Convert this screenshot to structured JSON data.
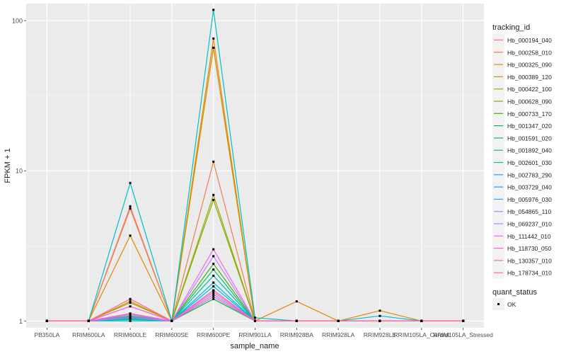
{
  "chart_data": {
    "type": "line",
    "title": "",
    "xlabel": "sample_name",
    "ylabel": "FPKM + 1",
    "y_scale": "log10",
    "ylim": [
      0.9,
      130
    ],
    "y_ticks": [
      1,
      10,
      100
    ],
    "y_tick_labels": [
      "1",
      "10",
      "100"
    ],
    "grid": true,
    "categories": [
      "PB350LA",
      "RRIM600LA",
      "RRIM600LE",
      "RRIM600SE",
      "RRIM600PE",
      "RRIM901LA",
      "RRIM928BA",
      "RRIM928LA",
      "RRIM928LE",
      "RRIM105LA_Control",
      "RRIM105LA_Stressed"
    ],
    "legend": {
      "position": "right",
      "title": "tracking_id",
      "entries": [
        "Hb_000194_040",
        "Hb_000258_010",
        "Hb_000325_090",
        "Hb_000389_120",
        "Hb_000422_100",
        "Hb_000628_090",
        "Hb_000733_170",
        "Hb_001347_020",
        "Hb_001591_020",
        "Hb_001892_040",
        "Hb_002601_030",
        "Hb_002783_290",
        "Hb_003729_040",
        "Hb_005976_030",
        "Hb_054865_110",
        "Hb_069237_010",
        "Hb_111442_010",
        "Hb_118730_050",
        "Hb_130357_010",
        "Hb_178734_010"
      ]
    },
    "shape_legend": {
      "title": "quant_status",
      "entries": [
        "OK"
      ]
    },
    "series": [
      {
        "name": "Hb_000194_040",
        "color": "#F8766D",
        "values": [
          1,
          1,
          5.8,
          1,
          66,
          1,
          1,
          1,
          1,
          1,
          1
        ]
      },
      {
        "name": "Hb_000258_010",
        "color": "#F07F4C",
        "values": [
          1,
          1,
          5.6,
          1,
          11.5,
          1,
          1,
          1,
          1,
          1,
          1
        ]
      },
      {
        "name": "Hb_000325_090",
        "color": "#E08B00",
        "values": [
          1,
          1,
          3.7,
          1,
          76,
          1,
          1.35,
          1,
          1.17,
          1,
          1
        ]
      },
      {
        "name": "Hb_000389_120",
        "color": "#CD9600",
        "values": [
          1,
          1,
          1.35,
          1,
          66,
          1,
          1,
          1,
          1,
          1,
          1
        ]
      },
      {
        "name": "Hb_000422_100",
        "color": "#ABA300",
        "values": [
          1,
          1,
          1.32,
          1,
          6.9,
          1,
          1,
          1,
          1,
          1,
          1
        ]
      },
      {
        "name": "Hb_000628_090",
        "color": "#7CAE00",
        "values": [
          1,
          1,
          1.08,
          1,
          6.4,
          1,
          1,
          1,
          1,
          1,
          1
        ]
      },
      {
        "name": "Hb_000733_170",
        "color": "#39B600",
        "values": [
          1,
          1,
          1.05,
          1,
          2.4,
          1,
          1,
          1,
          1,
          1,
          1
        ]
      },
      {
        "name": "Hb_001347_020",
        "color": "#00BB4E",
        "values": [
          1,
          1,
          1.03,
          1,
          1.4,
          1,
          1,
          1,
          1,
          1,
          1
        ]
      },
      {
        "name": "Hb_001591_020",
        "color": "#00BF7D",
        "values": [
          1,
          1,
          1.04,
          1,
          2.2,
          1,
          1,
          1,
          1,
          1,
          1
        ]
      },
      {
        "name": "Hb_001892_040",
        "color": "#00C1A3",
        "values": [
          1,
          1,
          1.02,
          1,
          2.0,
          1,
          1,
          1,
          1,
          1,
          1
        ]
      },
      {
        "name": "Hb_002601_030",
        "color": "#00BFC4",
        "values": [
          1,
          1,
          8.3,
          1,
          118,
          1.05,
          1,
          1,
          1,
          1,
          1
        ]
      },
      {
        "name": "Hb_002783_290",
        "color": "#00BAE0",
        "values": [
          1,
          1,
          1.0,
          1,
          1.8,
          1,
          1,
          1,
          1.08,
          1,
          1
        ]
      },
      {
        "name": "Hb_003729_040",
        "color": "#00B0F6",
        "values": [
          1,
          1,
          1.06,
          1,
          1.7,
          1,
          1,
          1,
          1,
          1,
          1
        ]
      },
      {
        "name": "Hb_005976_030",
        "color": "#35A2FF",
        "values": [
          1,
          1,
          1.07,
          1,
          1.6,
          1,
          1,
          1,
          1,
          1,
          1
        ]
      },
      {
        "name": "Hb_054865_110",
        "color": "#9590FF",
        "values": [
          1,
          1,
          1.1,
          1,
          1.5,
          1,
          1,
          1,
          1,
          1,
          1
        ]
      },
      {
        "name": "Hb_069237_010",
        "color": "#C77CFF",
        "values": [
          1,
          1,
          1.12,
          1,
          2.7,
          1,
          1,
          1,
          1,
          1,
          1
        ]
      },
      {
        "name": "Hb_111442_010",
        "color": "#E76BF3",
        "values": [
          1,
          1,
          1.05,
          1,
          3.0,
          1,
          1,
          1,
          1,
          1,
          1
        ]
      },
      {
        "name": "Hb_118730_050",
        "color": "#FA62DB",
        "values": [
          1,
          1,
          1.25,
          1,
          1.55,
          1,
          1,
          1,
          1,
          1,
          1
        ]
      },
      {
        "name": "Hb_130357_010",
        "color": "#FF62BC",
        "values": [
          1,
          1,
          1.12,
          1,
          1.45,
          1,
          1,
          1,
          1,
          1,
          1
        ]
      },
      {
        "name": "Hb_178734_010",
        "color": "#FF6C91",
        "values": [
          1,
          1,
          1.4,
          1,
          1.6,
          1,
          1,
          1,
          1,
          1,
          1
        ]
      }
    ]
  },
  "colors": {
    "panel": "#EBEBEB",
    "grid_major": "#FFFFFF",
    "grid_minor": "#F5F5F5",
    "text": "#222222",
    "tick_text": "#4D4D4D",
    "point": "#000000"
  }
}
